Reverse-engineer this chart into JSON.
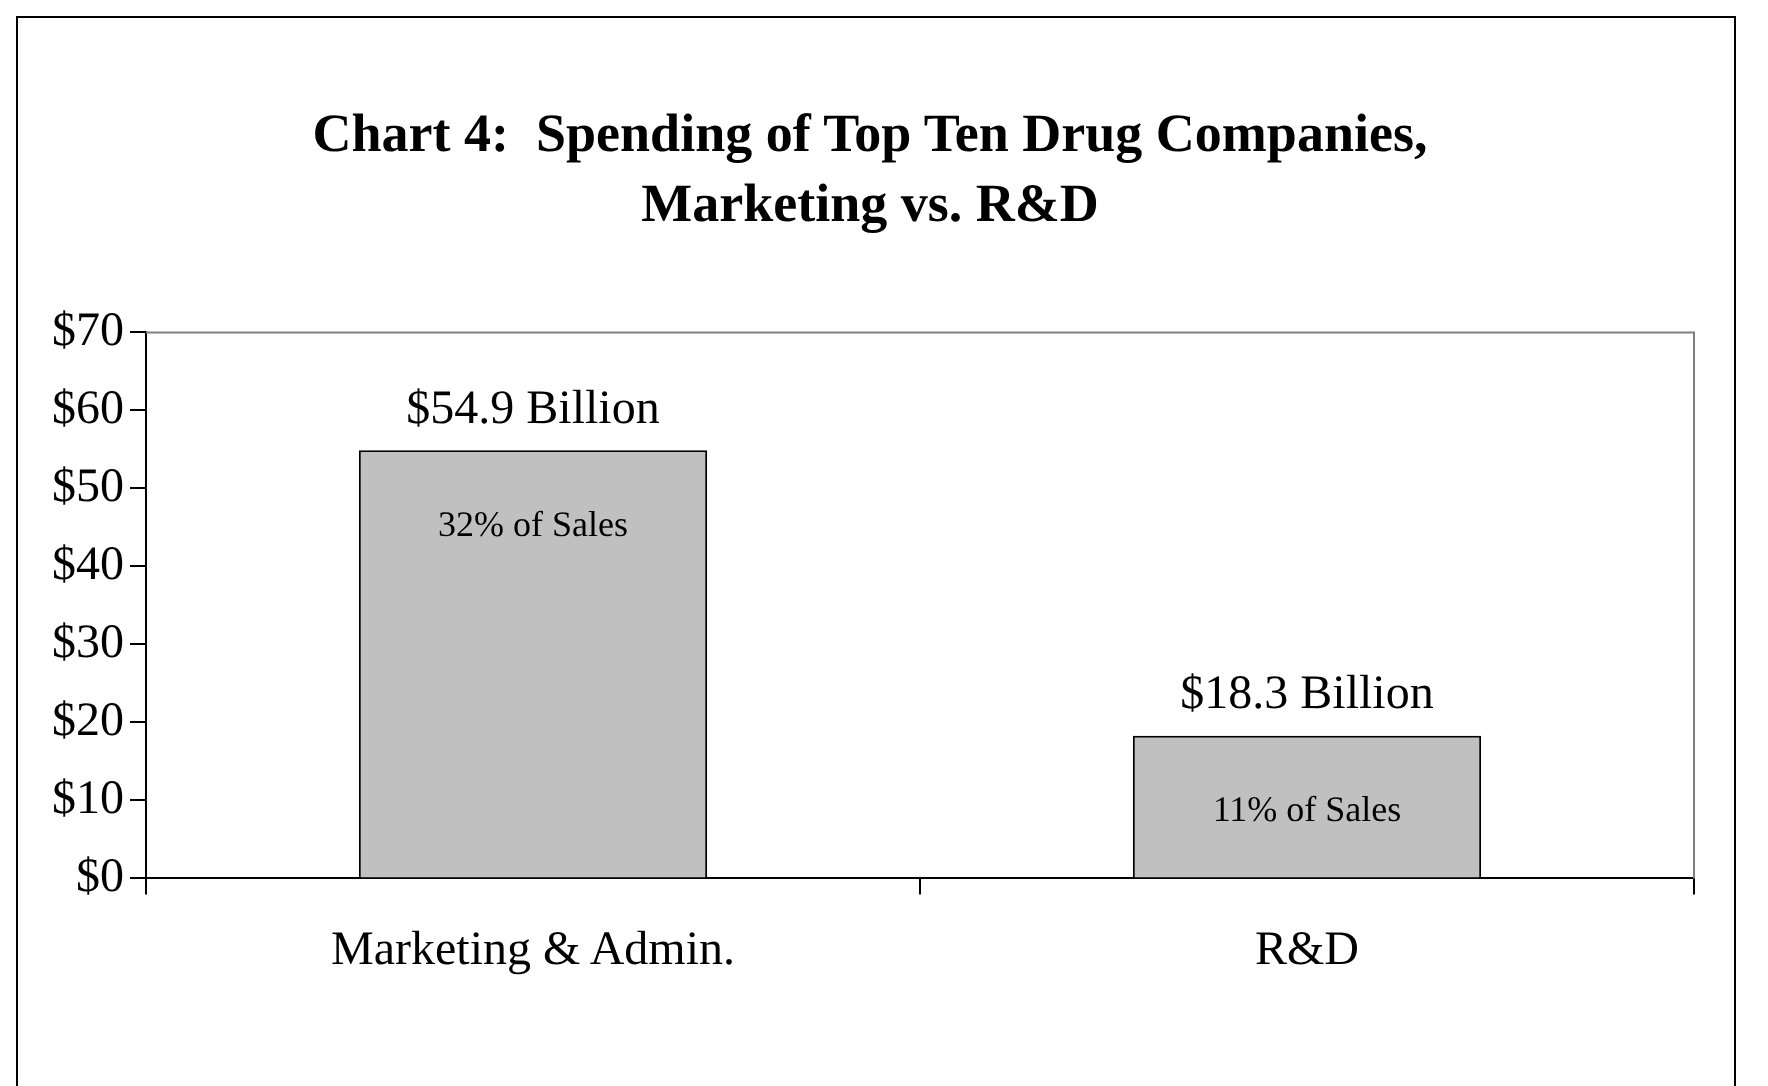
{
  "chart_data": {
    "type": "bar",
    "title": "Chart 4:  Spending of Top Ten Drug Companies,\nMarketing vs. R&D",
    "categories": [
      "Marketing & Admin.",
      "R&D"
    ],
    "values": [
      54.9,
      18.3
    ],
    "value_labels": [
      "$54.9 Billion",
      "$18.3 Billion"
    ],
    "color": "#c0c0c0",
    "ylim": [
      0,
      70
    ],
    "yticks": [
      {
        "value": 0,
        "label": "$0"
      },
      {
        "value": 10,
        "label": "$10"
      },
      {
        "value": 20,
        "label": "$20"
      },
      {
        "value": 30,
        "label": "$30"
      },
      {
        "value": 40,
        "label": "$40"
      },
      {
        "value": 50,
        "label": "$50"
      },
      {
        "value": 60,
        "label": "$60"
      },
      {
        "value": 70,
        "label": "$70"
      }
    ],
    "annotations": [
      "32% of Sales",
      "11% of Sales"
    ],
    "grid": false,
    "legend": false
  }
}
